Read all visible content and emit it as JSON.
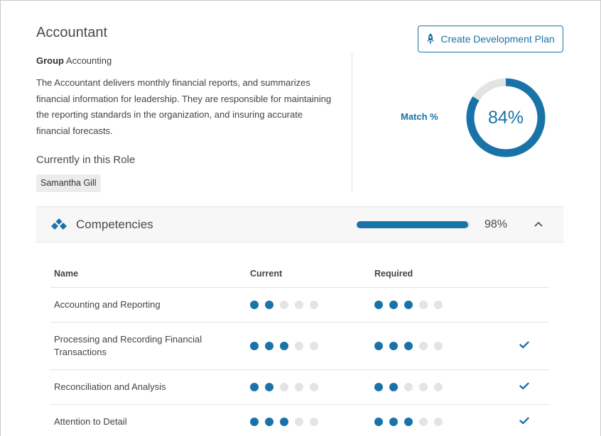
{
  "role": {
    "title": "Accountant",
    "group_label": "Group",
    "group_value": "Accounting",
    "description": "The Accountant delivers monthly financial reports, and summarizes financial information for leadership. They are responsible for maintaining the reporting standards in the organization, and insuring accurate financial forecasts.",
    "current_holders_title": "Currently in this Role",
    "current_holders": [
      "Samantha Gill"
    ]
  },
  "actions": {
    "create_plan_label": "Create Development Plan",
    "create_plan_icon": "rocket-icon"
  },
  "match": {
    "label": "Match %",
    "percent": 84,
    "percent_text": "84%"
  },
  "competencies": {
    "title": "Competencies",
    "icon": "diamonds-icon",
    "progress": 98,
    "progress_text": "98%",
    "expanded": true,
    "columns": {
      "name": "Name",
      "current": "Current",
      "required": "Required"
    },
    "max_level": 5,
    "rows": [
      {
        "name": "Accounting and Reporting",
        "current": 2,
        "required": 3,
        "met": false
      },
      {
        "name": "Processing and Recording Financial Transactions",
        "current": 3,
        "required": 3,
        "met": true
      },
      {
        "name": "Reconciliation and Analysis",
        "current": 2,
        "required": 2,
        "met": true
      },
      {
        "name": "Attention to Detail",
        "current": 3,
        "required": 3,
        "met": true
      }
    ]
  },
  "colors": {
    "accent": "#1a73a8",
    "dot_off": "#e4e4e4",
    "donut_track": "#e3e3e3"
  }
}
